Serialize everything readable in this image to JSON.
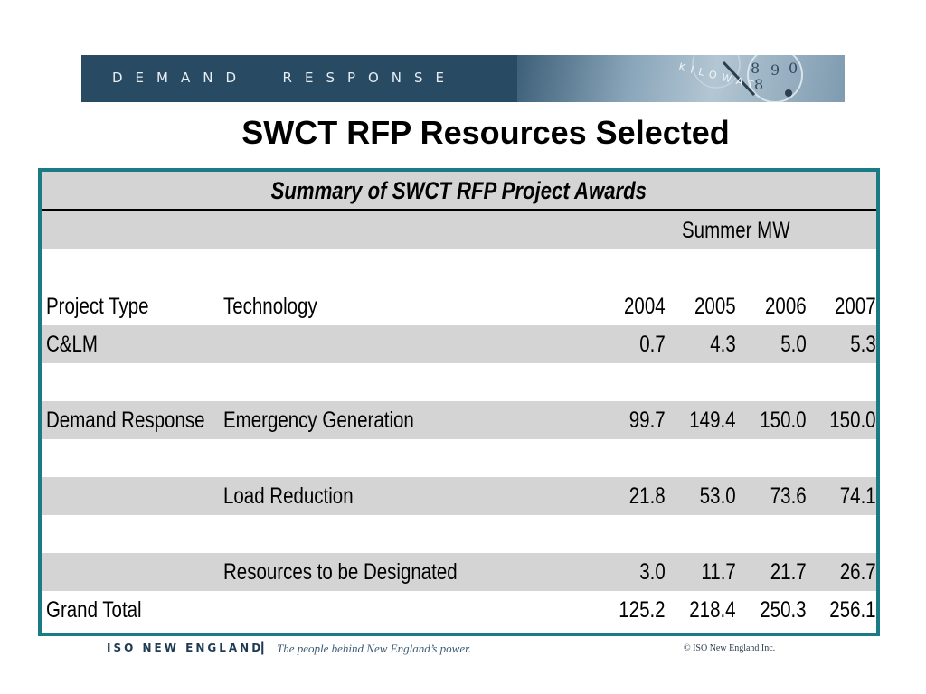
{
  "banner": {
    "title": "DEMAND  RESPONSE",
    "art_text": "KILOWAT"
  },
  "page_title": "SWCT RFP Resources Selected",
  "table": {
    "title": "Summary of SWCT RFP Project Awards",
    "units_header": "Summer MW",
    "columns": {
      "project_type": "Project Type",
      "technology": "Technology",
      "y2004": "2004",
      "y2005": "2005",
      "y2006": "2006",
      "y2007": "2007"
    },
    "rows": [
      {
        "project_type": "C&LM",
        "technology": "",
        "y2004": "0.7",
        "y2005": "4.3",
        "y2006": "5.0",
        "y2007": "5.3"
      },
      {
        "project_type": "Demand Response",
        "technology": "Emergency Generation",
        "y2004": "99.7",
        "y2005": "149.4",
        "y2006": "150.0",
        "y2007": "150.0"
      },
      {
        "project_type": "",
        "technology": "Load Reduction",
        "y2004": "21.8",
        "y2005": "53.0",
        "y2006": "73.6",
        "y2007": "74.1"
      },
      {
        "project_type": "",
        "technology": "Resources to be Designated",
        "y2004": "3.0",
        "y2005": "11.7",
        "y2006": "21.7",
        "y2007": "26.7"
      },
      {
        "project_type": "Grand Total",
        "technology": "",
        "y2004": "125.2",
        "y2005": "218.4",
        "y2006": "250.3",
        "y2007": "256.1"
      }
    ]
  },
  "footer": {
    "org": "ISO NEW ENGLAND",
    "separator": "|",
    "tagline": "The people behind New England’s power.",
    "copyright": "© ISO New England Inc."
  },
  "colors": {
    "banner_bg": "#284a63",
    "table_border": "#1a7a86",
    "row_shade": "#d4d4d4"
  }
}
